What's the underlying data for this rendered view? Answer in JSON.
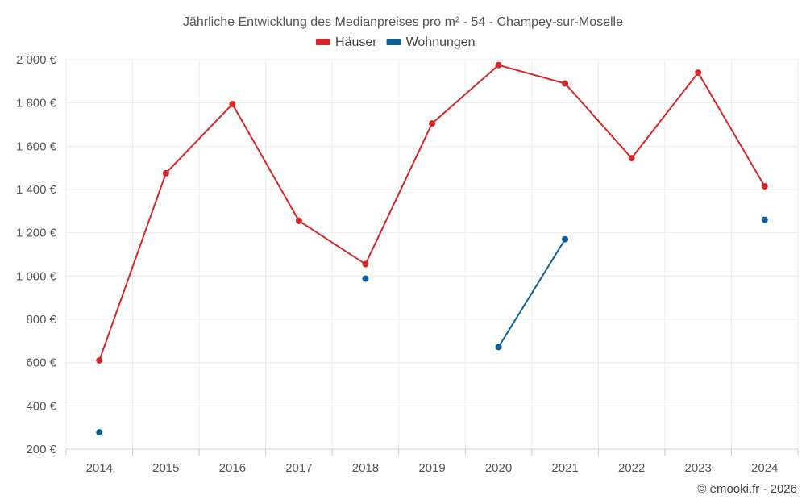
{
  "chart_data": {
    "type": "line",
    "title": "Jährliche Entwicklung des Medianpreises pro m² - 54 - Champey-sur-Moselle",
    "xlabel": "",
    "ylabel": "",
    "categories": [
      "2014",
      "2015",
      "2016",
      "2017",
      "2018",
      "2019",
      "2020",
      "2021",
      "2022",
      "2023",
      "2024"
    ],
    "ylim": [
      200,
      2000
    ],
    "yticks": [
      200,
      400,
      600,
      800,
      1000,
      1200,
      1400,
      1600,
      1800,
      2000
    ],
    "ytick_labels": [
      "200 €",
      "400 €",
      "600 €",
      "800 €",
      "1 000 €",
      "1 200 €",
      "1 400 €",
      "1 600 €",
      "1 800 €",
      "2 000 €"
    ],
    "grid": true,
    "legend_position": "top-center",
    "series": [
      {
        "name": "Häuser",
        "color": "#d62728",
        "values": [
          610,
          1475,
          1795,
          1255,
          1055,
          1705,
          1975,
          1890,
          1545,
          1940,
          1415
        ]
      },
      {
        "name": "Wohnungen",
        "color": "#0d6099",
        "values": [
          278,
          null,
          null,
          null,
          988,
          null,
          672,
          1170,
          null,
          null,
          1260
        ]
      }
    ]
  },
  "credit": "© emooki.fr - 2026"
}
